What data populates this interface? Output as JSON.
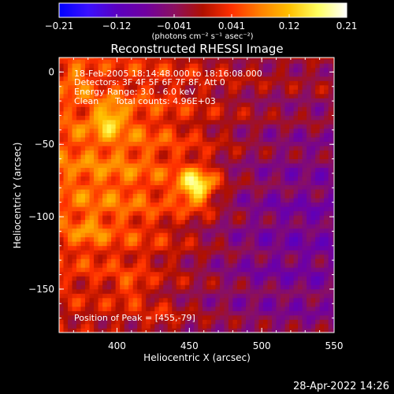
{
  "chart_data": {
    "type": "heatmap",
    "title": "Reconstructed RHESSI Image",
    "xlabel": "Heliocentric X (arcsec)",
    "ylabel": "Heliocentric Y (arcsec)",
    "xlim": [
      360,
      550
    ],
    "ylim": [
      -180,
      10
    ],
    "xticks": [
      400,
      450,
      500,
      550
    ],
    "yticks": [
      0,
      -50,
      -100,
      -150
    ],
    "grid": false,
    "colorbar": {
      "placement": "top",
      "min": -0.21,
      "max": 0.21,
      "ticks": [
        "-0.21",
        "-0.12",
        "-0.041",
        "0.041",
        "0.12",
        "0.21"
      ],
      "unit": "(photons cm⁻² s⁻¹ asec⁻²)",
      "colors": [
        "#0000ff",
        "#3a10ff",
        "#5a00c0",
        "#7000a0",
        "#8a1060",
        "#b01000",
        "#ff3000",
        "#ff8000",
        "#ffc000",
        "#ffff60",
        "#ffffff"
      ]
    },
    "peak": {
      "x": 455,
      "y": -79,
      "value": 0.21
    },
    "sources": [
      {
        "x": 455,
        "y": -79,
        "value": 0.21
      },
      {
        "x": 395,
        "y": -32,
        "value": 0.14
      },
      {
        "x": 372,
        "y": -5,
        "value": 0.1
      },
      {
        "x": 410,
        "y": -150,
        "value": 0.09
      },
      {
        "x": 380,
        "y": -110,
        "value": 0.08
      },
      {
        "x": 430,
        "y": -170,
        "value": 0.07
      }
    ],
    "annotations": {
      "time": "18-Feb-2005 18:14:48.000 to 18:16:08.000",
      "detectors": "Detectors: 3F 4F 5F 6F 7F 8F, Att 0",
      "energy": "Energy Range: 3.0 - 6.0 keV",
      "clean": "Clean",
      "counts": "Total counts: 4.96E+03",
      "peak": "Position of Peak = [455,-79]"
    }
  },
  "footer": {
    "timestamp": "28-Apr-2022 14:26"
  }
}
